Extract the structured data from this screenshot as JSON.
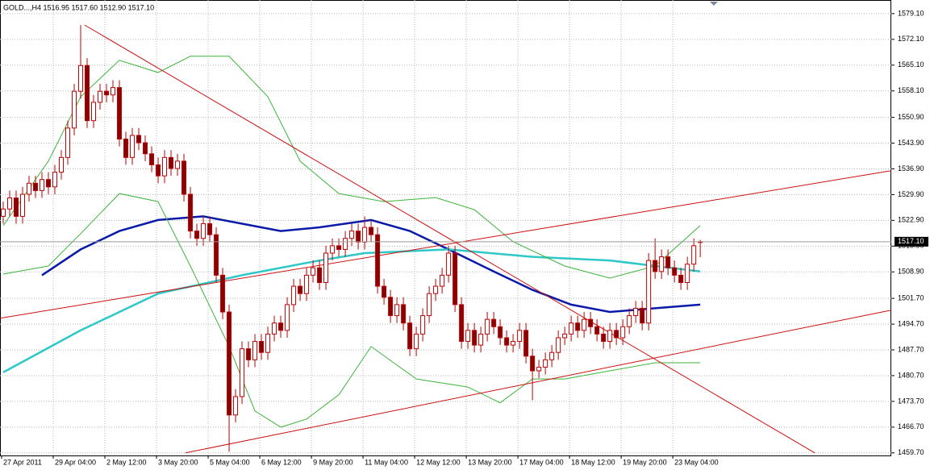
{
  "chart_data": {
    "type": "candlestick",
    "title": "GOLD...,H4  1516.95 1517.60 1512.90 1517.10",
    "xlim": [
      -0.5,
      137.6
    ],
    "ylim": [
      1459.0,
      1582.8
    ],
    "grid": true,
    "yticks": [
      {
        "value": 1579.1,
        "label": "1579.10"
      },
      {
        "value": 1572.1,
        "label": "1572.10"
      },
      {
        "value": 1565.1,
        "label": "1565.10"
      },
      {
        "value": 1558.1,
        "label": "1558.10"
      },
      {
        "value": 1550.9,
        "label": "1550.90"
      },
      {
        "value": 1543.9,
        "label": "1543.90"
      },
      {
        "value": 1536.9,
        "label": "1536.90"
      },
      {
        "value": 1529.9,
        "label": "1529.90"
      },
      {
        "value": 1522.9,
        "label": "1522.90"
      },
      {
        "value": 1515.9,
        "label": "1515.90"
      },
      {
        "value": 1508.9,
        "label": "1508.90"
      },
      {
        "value": 1501.7,
        "label": "1501.70"
      },
      {
        "value": 1494.7,
        "label": "1494.70"
      },
      {
        "value": 1487.7,
        "label": "1487.70"
      },
      {
        "value": 1480.7,
        "label": "1480.70"
      },
      {
        "value": 1473.7,
        "label": "1473.70"
      },
      {
        "value": 1466.7,
        "label": "1466.70"
      },
      {
        "value": 1459.7,
        "label": "1459.70"
      }
    ],
    "xticks": [
      {
        "value": 0,
        "label": "27 Apr 2011"
      },
      {
        "value": 8,
        "label": "29 Apr 04:00"
      },
      {
        "value": 16,
        "label": "2 May 12:00"
      },
      {
        "value": 24,
        "label": "3 May 20:00"
      },
      {
        "value": 32,
        "label": "5 May 04:00"
      },
      {
        "value": 40,
        "label": "6 May 12:00"
      },
      {
        "value": 48,
        "label": "9 May 20:00"
      },
      {
        "value": 56,
        "label": "11 May 04:00"
      },
      {
        "value": 64,
        "label": "12 May 12:00"
      },
      {
        "value": 72,
        "label": "13 May 20:00"
      },
      {
        "value": 80,
        "label": "17 May 04:00"
      },
      {
        "value": 88,
        "label": "18 May 12:00"
      },
      {
        "value": 96,
        "label": "19 May 20:00"
      },
      {
        "value": 104,
        "label": "23 May 04:00"
      }
    ],
    "last_price": {
      "value": 1517.1,
      "label": "1517.10"
    },
    "up_color": "#ffffff",
    "down_color": "#8b0000",
    "candle_color": "#c00000",
    "open": [
      1524,
      1526,
      1529,
      1524,
      1530,
      1533,
      1531,
      1534,
      1532,
      1536,
      1540,
      1548,
      1558,
      1565,
      1550,
      1555,
      1558,
      1557,
      1559,
      1545,
      1540,
      1546,
      1544,
      1541,
      1538,
      1535,
      1540,
      1537,
      1539,
      1530,
      1520,
      1518,
      1522,
      1519,
      1508,
      1498,
      1470,
      1475,
      1488,
      1485,
      1490,
      1487,
      1492,
      1495,
      1493,
      1500,
      1505,
      1503,
      1508,
      1510,
      1506,
      1514,
      1516,
      1515,
      1518,
      1520,
      1517,
      1521,
      1519,
      1505,
      1502,
      1497,
      1500,
      1495,
      1488,
      1492,
      1497,
      1503,
      1505,
      1508,
      1514,
      1500,
      1490,
      1493,
      1489,
      1492,
      1496,
      1494,
      1491,
      1489,
      1490,
      1493,
      1486,
      1482,
      1483,
      1485,
      1487,
      1491,
      1492,
      1495,
      1493,
      1496,
      1494,
      1492,
      1490,
      1493,
      1491,
      1494,
      1497,
      1499,
      1495,
      1512,
      1509,
      1513,
      1510,
      1508,
      1506,
      1511,
      1516.95
    ],
    "high": [
      1528,
      1531,
      1531,
      1532,
      1535,
      1535,
      1536,
      1536,
      1538,
      1542,
      1550,
      1560,
      1576,
      1567,
      1557,
      1560,
      1560,
      1561,
      1561,
      1547,
      1548,
      1548,
      1546,
      1543,
      1540,
      1542,
      1542,
      1541,
      1541,
      1532,
      1522,
      1524,
      1524,
      1521,
      1510,
      1500,
      1477,
      1490,
      1490,
      1492,
      1492,
      1494,
      1497,
      1497,
      1502,
      1507,
      1507,
      1510,
      1512,
      1512,
      1516,
      1518,
      1518,
      1520,
      1522,
      1522,
      1524,
      1523,
      1521,
      1507,
      1504,
      1502,
      1502,
      1497,
      1494,
      1499,
      1505,
      1507,
      1510,
      1516,
      1516,
      1502,
      1495,
      1495,
      1494,
      1498,
      1498,
      1496,
      1493,
      1492,
      1495,
      1495,
      1488,
      1485,
      1487,
      1489,
      1493,
      1494,
      1497,
      1497,
      1498,
      1498,
      1496,
      1494,
      1495,
      1495,
      1496,
      1499,
      1501,
      1501,
      1514,
      1518,
      1515,
      1515,
      1512,
      1510,
      1513,
      1518,
      1517.6
    ],
    "low": [
      1522,
      1524,
      1522,
      1522,
      1528,
      1529,
      1529,
      1530,
      1530,
      1534,
      1538,
      1546,
      1556,
      1548,
      1548,
      1553,
      1555,
      1555,
      1543,
      1538,
      1538,
      1542,
      1539,
      1536,
      1533,
      1533,
      1535,
      1535,
      1528,
      1518,
      1516,
      1516,
      1517,
      1506,
      1496,
      1460,
      1468,
      1473,
      1483,
      1483,
      1485,
      1485,
      1490,
      1491,
      1491,
      1498,
      1501,
      1501,
      1506,
      1504,
      1504,
      1512,
      1513,
      1513,
      1516,
      1515,
      1515,
      1517,
      1503,
      1500,
      1495,
      1495,
      1493,
      1486,
      1486,
      1490,
      1495,
      1501,
      1503,
      1506,
      1498,
      1488,
      1488,
      1487,
      1487,
      1490,
      1492,
      1489,
      1487,
      1487,
      1488,
      1484,
      1474,
      1480,
      1481,
      1483,
      1485,
      1489,
      1490,
      1491,
      1491,
      1492,
      1490,
      1488,
      1488,
      1489,
      1489,
      1492,
      1495,
      1493,
      1493,
      1507,
      1507,
      1508,
      1506,
      1504,
      1504,
      1509,
      1512.9
    ],
    "close": [
      1526,
      1529,
      1524,
      1530,
      1533,
      1531,
      1534,
      1532,
      1536,
      1540,
      1548,
      1558,
      1565,
      1550,
      1555,
      1558,
      1557,
      1559,
      1545,
      1540,
      1546,
      1544,
      1541,
      1538,
      1535,
      1540,
      1537,
      1539,
      1530,
      1520,
      1518,
      1522,
      1519,
      1508,
      1498,
      1470,
      1475,
      1488,
      1485,
      1490,
      1487,
      1492,
      1495,
      1493,
      1500,
      1505,
      1503,
      1508,
      1510,
      1506,
      1514,
      1516,
      1515,
      1518,
      1520,
      1517,
      1521,
      1519,
      1505,
      1502,
      1497,
      1500,
      1495,
      1488,
      1492,
      1497,
      1503,
      1505,
      1508,
      1514,
      1500,
      1490,
      1493,
      1489,
      1492,
      1496,
      1494,
      1491,
      1489,
      1490,
      1493,
      1486,
      1482,
      1483,
      1485,
      1487,
      1491,
      1492,
      1495,
      1493,
      1496,
      1494,
      1492,
      1490,
      1493,
      1491,
      1494,
      1497,
      1499,
      1495,
      1512,
      1509,
      1513,
      1510,
      1508,
      1506,
      1511,
      1516,
      1517.1
    ],
    "series": [
      {
        "color": "#0a1aa8",
        "x": [
          6,
          12,
          18,
          24,
          31,
          37,
          43,
          49,
          57,
          63,
          69,
          76,
          82,
          88,
          94,
          101,
          108
        ],
        "values": [
          1508,
          1515,
          1520,
          1523,
          1524,
          1522,
          1520,
          1521,
          1523,
          1520,
          1515,
          1509,
          1504,
          1500,
          1498,
          1499,
          1500
        ]
      },
      {
        "color": "#2ec8c8",
        "x": [
          0,
          12,
          24,
          37,
          49,
          56,
          69,
          82,
          94,
          108
        ],
        "values": [
          1481.6,
          1493,
          1503,
          1508,
          1512,
          1514,
          1515,
          1513,
          1512,
          1509
        ]
      },
      {
        "color": "#3cb43c",
        "x": [
          0,
          7,
          12,
          18,
          24,
          29,
          35,
          41,
          46,
          52,
          59,
          67,
          73,
          79,
          87,
          94,
          101,
          108
        ],
        "values": [
          1521.5,
          1539.0,
          1556.5,
          1566.4,
          1563.1,
          1567.5,
          1567.5,
          1556.5,
          1539.0,
          1530.2,
          1528.0,
          1529.1,
          1525.8,
          1517.1,
          1510.5,
          1507.2,
          1510.5,
          1521.5
        ]
      },
      {
        "color": "#3cb43c",
        "x": [
          0,
          7,
          12,
          18,
          24,
          29,
          35,
          39,
          43,
          47,
          52,
          57,
          64,
          72,
          77,
          82,
          87,
          94,
          101,
          108
        ],
        "values": [
          1508.3,
          1510.5,
          1519.3,
          1530.2,
          1528.0,
          1510.5,
          1488.6,
          1471.1,
          1466.7,
          1468.9,
          1475.5,
          1488.6,
          1479.8,
          1477.6,
          1473.3,
          1479.8,
          1479.8,
          1482.0,
          1484.2,
          1484.2
        ]
      },
      {
        "color": "#cc1010",
        "x": [
          12.6,
          125.75
        ],
        "values": [
          1576,
          1459.7
        ]
      },
      {
        "color": "#cc1010",
        "x": [
          28.25,
          137.6
        ],
        "values": [
          1459.7,
          1498.5
        ]
      },
      {
        "color": "#cc1010",
        "x": [
          -0.5,
          137.6
        ],
        "values": [
          1496.3,
          1536.4
        ]
      }
    ]
  }
}
